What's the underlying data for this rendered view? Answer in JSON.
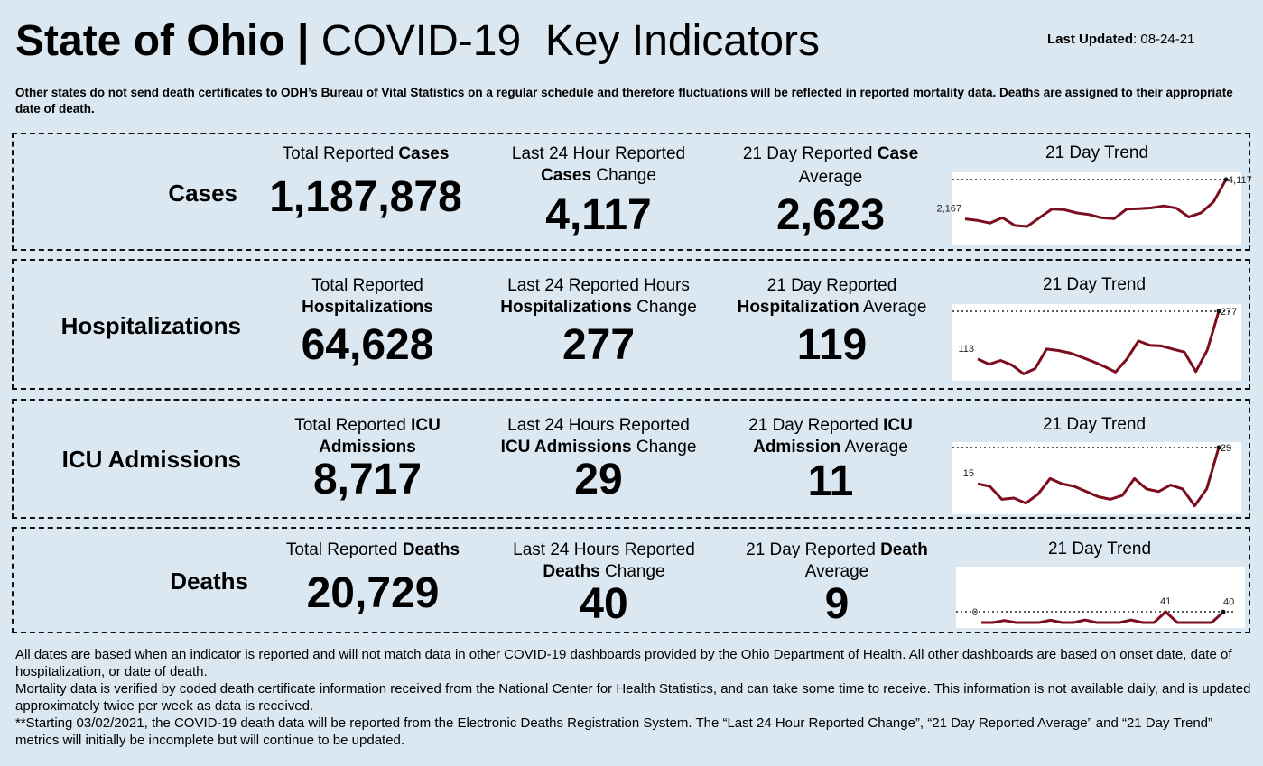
{
  "header": {
    "title_bold": "State of Ohio |",
    "title_rest": "COVID-19  Key Indicators",
    "updated_label": "Last Updated",
    "updated_value": ": 08-24-21",
    "note": "Other states do not send death certificates to ODH’s Bureau of Vital Statistics on a regular schedule and therefore fluctuations will be reflected in reported mortality data. Deaths are assigned to their appropriate date of death."
  },
  "panels": {
    "cases": {
      "label": "Cases",
      "total_pre": "Total Reported ",
      "total_bold": "Cases",
      "total_value": "1,187,878",
      "change_l1": "Last 24 Hour Reported",
      "change_bold": "Cases",
      "change_post": " Change",
      "change_value": "4,117",
      "avg_pre": "21 Day Reported ",
      "avg_bold": "Case",
      "avg_l2": "Average",
      "avg_value": "2,623",
      "trend_title": "21 Day Trend"
    },
    "hosp": {
      "label": "Hospitalizations",
      "total_l1": "Total Reported",
      "total_bold": "Hospitalizations",
      "total_value": "64,628",
      "change_l1": "Last 24 Reported Hours",
      "change_bold": "Hospitalizations",
      "change_post": " Change",
      "change_value": "277",
      "avg_l1": "21 Day Reported",
      "avg_bold": "Hospitalization",
      "avg_post": " Average",
      "avg_value": "119",
      "trend_title": "21 Day Trend"
    },
    "icu": {
      "label": "ICU Admissions",
      "total_pre": "Total Reported ",
      "total_bold1": "ICU",
      "total_bold2": "Admissions",
      "total_value": "8,717",
      "change_l1": "Last 24 Hours Reported",
      "change_bold": "ICU Admissions",
      "change_post": " Change",
      "change_value": "29",
      "avg_pre": "21 Day Reported ",
      "avg_bold1": "ICU",
      "avg_bold2": "Admission",
      "avg_post": " Average",
      "avg_value": "11",
      "trend_title": "21 Day Trend"
    },
    "deaths": {
      "label": "Deaths",
      "total_pre": "Total Reported ",
      "total_bold": "Deaths",
      "total_value": "20,729",
      "change_l1": "Last 24 Hours Reported",
      "change_bold": "Deaths",
      "change_post": " Change",
      "change_value": "40",
      "avg_pre": "21 Day Reported ",
      "avg_bold": "Death",
      "avg_l2": "Average",
      "avg_value": "9",
      "trend_title": "21 Day Trend"
    }
  },
  "chart_data": [
    {
      "type": "line",
      "title": "21 Day Trend",
      "series_name": "Cases",
      "values": [
        2167,
        2090,
        1960,
        2230,
        1840,
        1790,
        2230,
        2660,
        2620,
        2460,
        2380,
        2220,
        2180,
        2650,
        2670,
        2710,
        2810,
        2700,
        2260,
        2470,
        3010,
        4117
      ],
      "labels": {
        "first": "2,167",
        "last": "4,117"
      },
      "ref_value": 4117,
      "line_color": "#7b0d1e"
    },
    {
      "type": "line",
      "title": "21 Day Trend",
      "series_name": "Hospitalizations",
      "values": [
        113,
        95,
        108,
        92,
        62,
        80,
        147,
        142,
        134,
        120,
        105,
        88,
        68,
        113,
        175,
        160,
        158,
        147,
        137,
        70,
        144,
        277
      ],
      "labels": {
        "first": "113",
        "last": "277"
      },
      "ref_value": 277,
      "line_color": "#7b0d1e"
    },
    {
      "type": "line",
      "title": "21 Day Trend",
      "series_name": "ICU Admissions",
      "values": [
        15,
        14,
        9,
        9.5,
        7.5,
        11,
        17,
        15,
        14,
        12,
        10,
        9,
        10.5,
        17,
        13,
        12,
        14.5,
        13,
        6.5,
        13,
        29
      ],
      "labels": {
        "first": "15",
        "last": "29"
      },
      "ref_value": 29,
      "line_color": "#7b0d1e"
    },
    {
      "type": "line",
      "title": "21 Day Trend",
      "series_name": "Deaths",
      "values": [
        0,
        0,
        8,
        0,
        0,
        0,
        9,
        0,
        0,
        10,
        0,
        0,
        0,
        10,
        0,
        0,
        41,
        0,
        0,
        0,
        0,
        40
      ],
      "labels": {
        "first": "0",
        "peak": "41",
        "last": "40"
      },
      "ref_value": 41,
      "line_color": "#7b0d1e"
    }
  ],
  "footer": {
    "p1": "All dates are based when an indicator is reported and will not match data in other COVID-19 dashboards provided by the Ohio Department of Health. All other dashboards are based on onset date, date of hospitalization, or date of death.",
    "p2": "Mortality data is verified by coded death certificate information received from the National Center for Health Statistics, and can take some time to receive. This information is not available daily, and is updated approximately twice per week as data is received.",
    "p3": "**Starting 03/02/2021, the COVID-19 death data will be reported from the Electronic Deaths Registration System. The “Last 24 Hour Reported Change”, “21 Day Reported Average” and “21 Day Trend” metrics will initially be incomplete but will continue to be updated."
  }
}
